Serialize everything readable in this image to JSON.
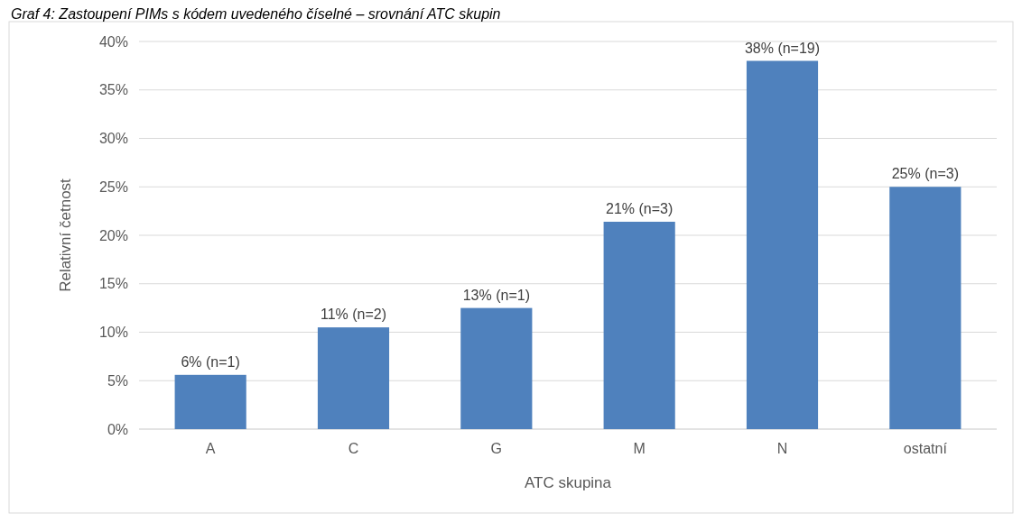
{
  "chart_data": {
    "type": "bar",
    "title": "Graf 4: Zastoupení PIMs s kódem uvedeného číselné – srovnání ATC skupin",
    "xlabel": "ATC skupina",
    "ylabel": "Relativní četnost",
    "categories": [
      "A",
      "C",
      "G",
      "M",
      "N",
      "ostatní"
    ],
    "values": [
      5.6,
      10.5,
      12.5,
      21.4,
      38,
      25
    ],
    "value_labels": [
      "6% (n=1)",
      "11% (n=2)",
      "13% (n=1)",
      "21% (n=3)",
      "38% (n=19)",
      "25% (n=3)"
    ],
    "color": "#4f81bd",
    "ylim": [
      0,
      40
    ],
    "yticks": [
      {
        "value": 0,
        "label": "0%"
      },
      {
        "value": 5,
        "label": "5%"
      },
      {
        "value": 10,
        "label": "10%"
      },
      {
        "value": 15,
        "label": "15%"
      },
      {
        "value": 20,
        "label": "20%"
      },
      {
        "value": 25,
        "label": "25%"
      },
      {
        "value": 30,
        "label": "30%"
      },
      {
        "value": 35,
        "label": "35%"
      },
      {
        "value": 40,
        "label": "40%"
      }
    ],
    "grid": "y"
  }
}
